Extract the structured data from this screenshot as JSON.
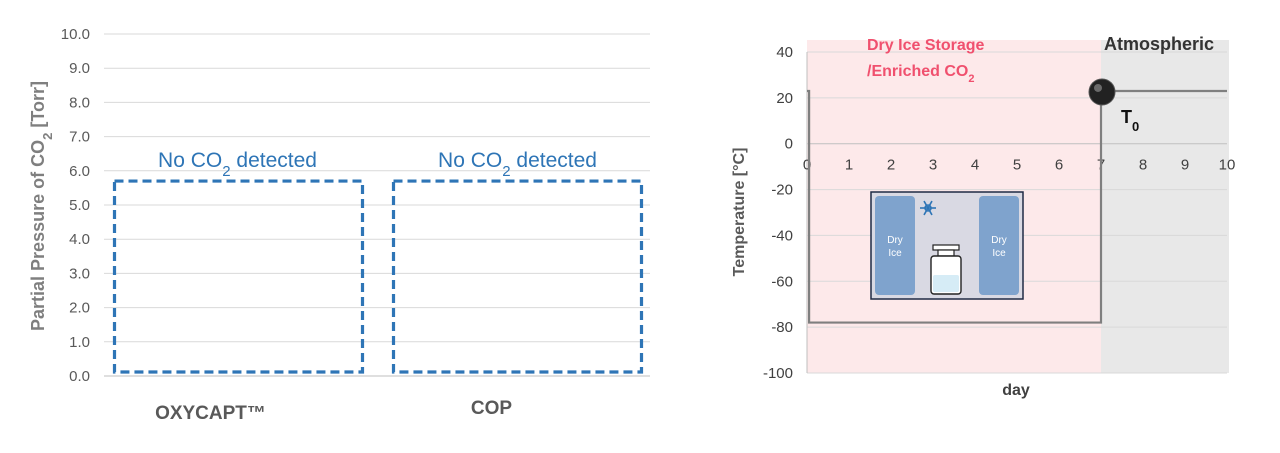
{
  "chart_data": [
    {
      "type": "bar",
      "ylabel_parts": [
        "Partial Pressure of CO",
        "2",
        " [Torr]"
      ],
      "ylim": [
        0,
        10
      ],
      "yticks": [
        "0.0",
        "1.0",
        "2.0",
        "3.0",
        "4.0",
        "5.0",
        "6.0",
        "7.0",
        "8.0",
        "9.0",
        "10.0"
      ],
      "grid": true,
      "categories": [
        "OXYCAPT™",
        "COP"
      ],
      "values": [
        0,
        0
      ],
      "annotations": [
        {
          "category": "OXYCAPT™",
          "parts": [
            "No CO",
            "2",
            " detected"
          ]
        },
        {
          "category": "COP",
          "parts": [
            "No CO",
            "2",
            " detected"
          ]
        }
      ],
      "annotation_box_top": 5.7,
      "colors": {
        "box": "#2e75b6",
        "grid": "#d9d9d9"
      }
    },
    {
      "type": "line",
      "xlabel": "day",
      "ylabel": "Temperature [°C]",
      "xlim": [
        0,
        10
      ],
      "ylim": [
        -100,
        40
      ],
      "xticks": [
        "0",
        "1",
        "2",
        "3",
        "4",
        "5",
        "6",
        "7",
        "8",
        "9",
        "10"
      ],
      "yticks": [
        "-100",
        "-80",
        "-60",
        "-40",
        "-20",
        "0",
        "20",
        "40"
      ],
      "grid": true,
      "series": [
        {
          "x": [
            0,
            0.05,
            0.05,
            7,
            7,
            10
          ],
          "y": [
            23,
            23,
            -78,
            -78,
            23,
            23
          ]
        }
      ],
      "marker": {
        "x": 7,
        "y": 23,
        "label_parts": [
          "T",
          "0"
        ]
      },
      "regions": [
        {
          "x0": 0,
          "x1": 7,
          "color": "#fde9ea",
          "label_lines": [
            [
              "Dry Ice Storage"
            ],
            [
              "/Enriched CO",
              "2"
            ]
          ]
        },
        {
          "x0": 7,
          "x1": 10,
          "color": "#e8e8e8",
          "label_lines": [
            [
              "Atmospheric"
            ]
          ]
        }
      ],
      "inset": {
        "left_label": [
          "Dry",
          "Ice"
        ],
        "right_label": [
          "Dry",
          "Ice"
        ],
        "icon": "snowflake-icon"
      },
      "colors": {
        "line": "#7f7f7f",
        "grid": "#d9d9d9",
        "marker": "#222222"
      }
    }
  ]
}
